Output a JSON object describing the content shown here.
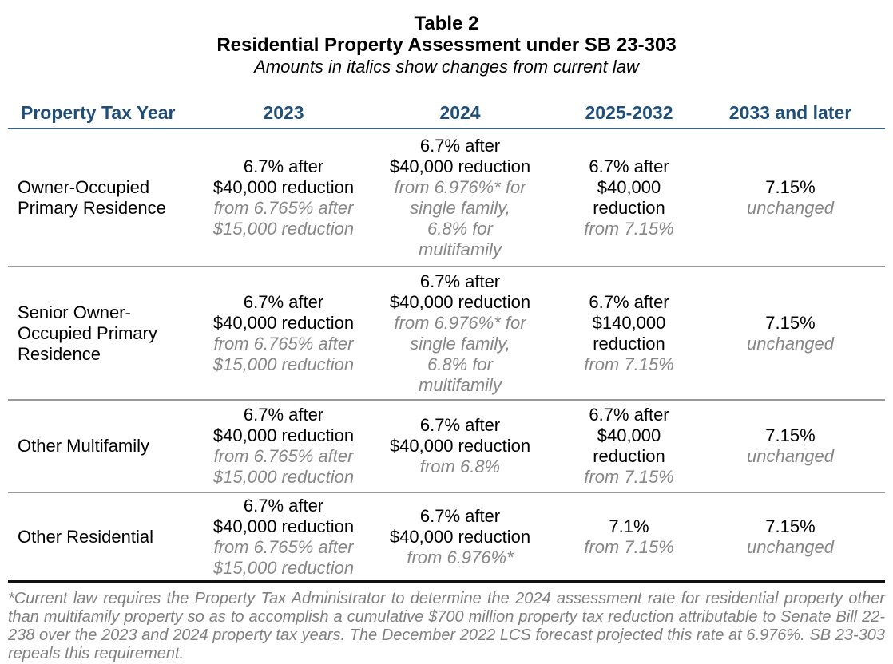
{
  "title": {
    "line1": "Table 2",
    "line2": "Residential Property Assessment under SB 23-303",
    "subtitle": "Amounts in italics show changes from current law"
  },
  "table": {
    "headers": [
      "Property Tax Year",
      "2023",
      "2024",
      "2025-2032",
      "2033 and later"
    ],
    "rows": [
      {
        "label": "Owner-Occupied\nPrimary Residence",
        "y2023": {
          "main": "6.7% after\n$40,000 reduction",
          "change": "from 6.765% after\n$15,000 reduction"
        },
        "y2024": {
          "main": "6.7% after\n$40,000 reduction",
          "change": "from 6.976%* for\nsingle family,\n6.8% for\nmultifamily"
        },
        "y2025_2032": {
          "main": "6.7% after\n$40,000\nreduction",
          "change": "from 7.15%"
        },
        "y2033_later": {
          "main": "7.15%",
          "change": "unchanged"
        }
      },
      {
        "label": "Senior Owner-\nOccupied Primary\nResidence",
        "y2023": {
          "main": "6.7% after\n$40,000 reduction",
          "change": "from 6.765% after\n$15,000 reduction"
        },
        "y2024": {
          "main": "6.7% after\n$40,000 reduction",
          "change": "from 6.976%* for\nsingle family,\n6.8% for\nmultifamily"
        },
        "y2025_2032": {
          "main": "6.7% after\n$140,000\nreduction",
          "change": "from 7.15%"
        },
        "y2033_later": {
          "main": "7.15%",
          "change": "unchanged"
        }
      },
      {
        "label": "Other Multifamily",
        "y2023": {
          "main": "6.7% after\n$40,000 reduction",
          "change": "from 6.765% after\n$15,000 reduction"
        },
        "y2024": {
          "main": "6.7% after\n$40,000 reduction",
          "change": "from 6.8%"
        },
        "y2025_2032": {
          "main": "6.7% after\n$40,000\nreduction",
          "change": "from 7.15%"
        },
        "y2033_later": {
          "main": "7.15%",
          "change": "unchanged"
        }
      },
      {
        "label": "Other Residential",
        "y2023": {
          "main": "6.7% after\n$40,000 reduction",
          "change": "from 6.765% after\n$15,000 reduction"
        },
        "y2024": {
          "main": "6.7% after\n$40,000 reduction",
          "change": "from 6.976%*"
        },
        "y2025_2032": {
          "main": "7.1%",
          "change": "from 7.15%"
        },
        "y2033_later": {
          "main": "7.15%",
          "change": "unchanged"
        }
      }
    ]
  },
  "footnote": "*Current law requires the Property Tax Administrator to determine the 2024 assessment rate for residential property other than multifamily property so as to accomplish a cumulative $700 million property tax reduction attributable to Senate Bill 22-238 over the 2023 and 2024 property tax years. The December 2022 LCS forecast projected this rate at 6.976%. SB 23-303 repeals this requirement.",
  "colors": {
    "header_text": "#1F4E79",
    "header_rule": "#35618B",
    "row_rule": "#9A9A9A",
    "bottom_rule": "#111111",
    "change_text": "#868686",
    "footnote_text": "#7f7f7f"
  }
}
